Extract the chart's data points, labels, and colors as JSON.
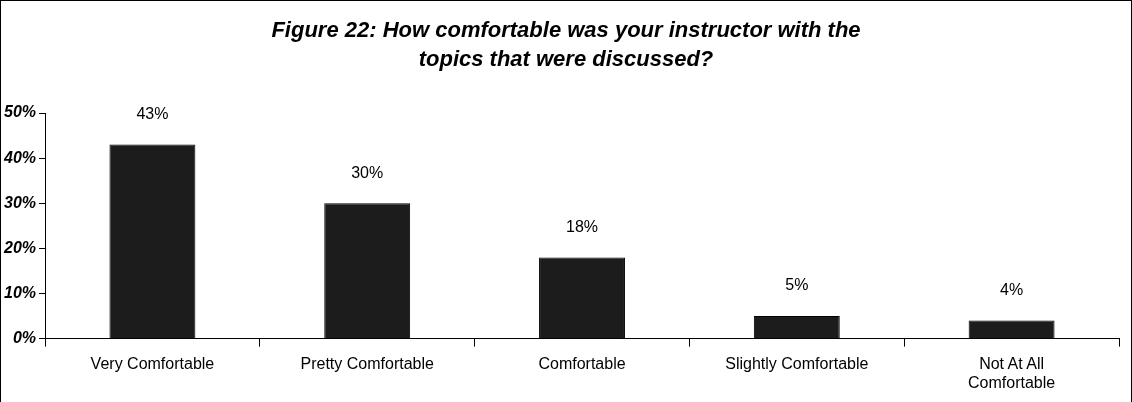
{
  "chart_data": {
    "type": "bar",
    "title": "Figure 22: How comfortable was your instructor with the topics that were discussed?",
    "categories": [
      "Very Comfortable",
      "Pretty Comfortable",
      "Comfortable",
      "Slightly Comfortable",
      "Not At All Comfortable"
    ],
    "values": [
      43,
      30,
      18,
      5,
      4
    ],
    "value_labels": [
      "43%",
      "30%",
      "18%",
      "5%",
      "4%"
    ],
    "color": "#1c1c1c",
    "ylim": [
      0,
      50
    ],
    "yticks": [
      {
        "value": 0,
        "label": "0%"
      },
      {
        "value": 10,
        "label": "10%"
      },
      {
        "value": 20,
        "label": "20%"
      },
      {
        "value": 30,
        "label": "30%"
      },
      {
        "value": 40,
        "label": "40%"
      },
      {
        "value": 50,
        "label": "50%"
      }
    ],
    "grid": false,
    "legend": false
  }
}
